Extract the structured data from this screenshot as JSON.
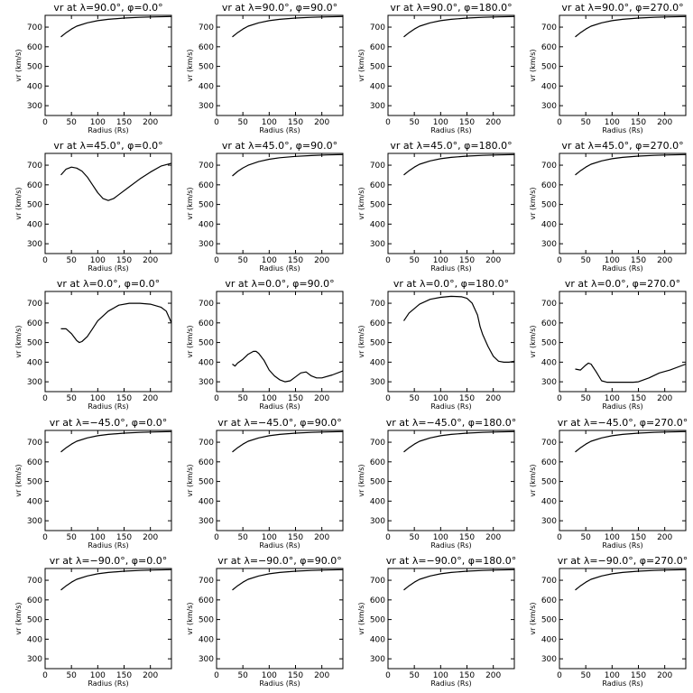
{
  "chart_data": [
    {
      "type": "line",
      "title": "vr at λ=90.0°, φ=0.0°",
      "xlabel": "Radius (Rs)",
      "ylabel": "vr (km/s)",
      "xlim": [
        0,
        240
      ],
      "ylim": [
        250,
        760
      ],
      "xticks": [
        0,
        50,
        100,
        150,
        200
      ],
      "yticks": [
        300,
        400,
        500,
        600,
        700
      ],
      "x": [
        30,
        40,
        50,
        60,
        80,
        100,
        120,
        150,
        180,
        210,
        240
      ],
      "y": [
        650,
        672,
        690,
        705,
        722,
        733,
        740,
        746,
        750,
        752,
        754
      ]
    },
    {
      "type": "line",
      "title": "vr at λ=90.0°, φ=90.0°",
      "xlabel": "Radius (Rs)",
      "ylabel": "vr (km/s)",
      "xlim": [
        0,
        240
      ],
      "ylim": [
        250,
        760
      ],
      "xticks": [
        0,
        50,
        100,
        150,
        200
      ],
      "yticks": [
        300,
        400,
        500,
        600,
        700
      ],
      "x": [
        30,
        40,
        50,
        60,
        80,
        100,
        120,
        150,
        180,
        210,
        240
      ],
      "y": [
        650,
        672,
        690,
        705,
        722,
        733,
        740,
        746,
        750,
        752,
        754
      ]
    },
    {
      "type": "line",
      "title": "vr at λ=90.0°, φ=180.0°",
      "xlabel": "Radius (Rs)",
      "ylabel": "vr (km/s)",
      "xlim": [
        0,
        240
      ],
      "ylim": [
        250,
        760
      ],
      "xticks": [
        0,
        50,
        100,
        150,
        200
      ],
      "yticks": [
        300,
        400,
        500,
        600,
        700
      ],
      "x": [
        30,
        40,
        50,
        60,
        80,
        100,
        120,
        150,
        180,
        210,
        240
      ],
      "y": [
        650,
        672,
        690,
        705,
        722,
        733,
        740,
        746,
        750,
        752,
        754
      ]
    },
    {
      "type": "line",
      "title": "vr at λ=90.0°, φ=270.0°",
      "xlabel": "Radius (Rs)",
      "ylabel": "vr (km/s)",
      "xlim": [
        0,
        240
      ],
      "ylim": [
        250,
        760
      ],
      "xticks": [
        0,
        50,
        100,
        150,
        200
      ],
      "yticks": [
        300,
        400,
        500,
        600,
        700
      ],
      "x": [
        30,
        40,
        50,
        60,
        80,
        100,
        120,
        150,
        180,
        210,
        240
      ],
      "y": [
        650,
        672,
        690,
        705,
        722,
        733,
        740,
        746,
        750,
        752,
        754
      ]
    },
    {
      "type": "line",
      "title": "vr at λ=45.0°, φ=0.0°",
      "xlabel": "Radius (Rs)",
      "ylabel": "vr (km/s)",
      "xlim": [
        0,
        240
      ],
      "ylim": [
        250,
        760
      ],
      "xticks": [
        0,
        50,
        100,
        150,
        200
      ],
      "yticks": [
        300,
        400,
        500,
        600,
        700
      ],
      "x": [
        30,
        40,
        50,
        60,
        70,
        80,
        90,
        100,
        110,
        120,
        130,
        140,
        160,
        180,
        200,
        220,
        240
      ],
      "y": [
        650,
        680,
        690,
        685,
        670,
        640,
        600,
        560,
        530,
        520,
        530,
        550,
        590,
        630,
        665,
        695,
        710
      ]
    },
    {
      "type": "line",
      "title": "vr at λ=45.0°, φ=90.0°",
      "xlabel": "Radius (Rs)",
      "ylabel": "vr (km/s)",
      "xlim": [
        0,
        240
      ],
      "ylim": [
        250,
        760
      ],
      "xticks": [
        0,
        50,
        100,
        150,
        200
      ],
      "yticks": [
        300,
        400,
        500,
        600,
        700
      ],
      "x": [
        30,
        40,
        50,
        60,
        80,
        100,
        120,
        150,
        180,
        210,
        240
      ],
      "y": [
        645,
        668,
        686,
        700,
        718,
        730,
        738,
        745,
        749,
        752,
        754
      ]
    },
    {
      "type": "line",
      "title": "vr at λ=45.0°, φ=180.0°",
      "xlabel": "Radius (Rs)",
      "ylabel": "vr (km/s)",
      "xlim": [
        0,
        240
      ],
      "ylim": [
        250,
        760
      ],
      "xticks": [
        0,
        50,
        100,
        150,
        200
      ],
      "yticks": [
        300,
        400,
        500,
        600,
        700
      ],
      "x": [
        30,
        40,
        50,
        60,
        80,
        100,
        120,
        150,
        180,
        210,
        240
      ],
      "y": [
        650,
        672,
        690,
        705,
        722,
        733,
        740,
        746,
        750,
        752,
        754
      ]
    },
    {
      "type": "line",
      "title": "vr at λ=45.0°, φ=270.0°",
      "xlabel": "Radius (Rs)",
      "ylabel": "vr (km/s)",
      "xlim": [
        0,
        240
      ],
      "ylim": [
        250,
        760
      ],
      "xticks": [
        0,
        50,
        100,
        150,
        200
      ],
      "yticks": [
        300,
        400,
        500,
        600,
        700
      ],
      "x": [
        30,
        40,
        50,
        60,
        80,
        100,
        120,
        150,
        180,
        210,
        240
      ],
      "y": [
        650,
        672,
        690,
        705,
        722,
        733,
        740,
        746,
        750,
        752,
        754
      ]
    },
    {
      "type": "line",
      "title": "vr at λ=0.0°, φ=0.0°",
      "xlabel": "Radius (Rs)",
      "ylabel": "vr (km/s)",
      "xlim": [
        0,
        240
      ],
      "ylim": [
        250,
        760
      ],
      "xticks": [
        0,
        50,
        100,
        150,
        200
      ],
      "yticks": [
        300,
        400,
        500,
        600,
        700
      ],
      "x": [
        30,
        40,
        50,
        60,
        65,
        70,
        80,
        90,
        100,
        120,
        140,
        160,
        180,
        200,
        220,
        230,
        240
      ],
      "y": [
        570,
        570,
        545,
        510,
        500,
        505,
        530,
        570,
        610,
        660,
        690,
        700,
        700,
        695,
        680,
        660,
        600
      ]
    },
    {
      "type": "line",
      "title": "vr at λ=0.0°, φ=90.0°",
      "xlabel": "Radius (Rs)",
      "ylabel": "vr (km/s)",
      "xlim": [
        0,
        240
      ],
      "ylim": [
        250,
        760
      ],
      "xticks": [
        0,
        50,
        100,
        150,
        200
      ],
      "yticks": [
        300,
        400,
        500,
        600,
        700
      ],
      "x": [
        30,
        35,
        40,
        50,
        60,
        70,
        75,
        80,
        90,
        100,
        110,
        120,
        130,
        140,
        150,
        160,
        170,
        180,
        190,
        200,
        220,
        240
      ],
      "y": [
        390,
        380,
        395,
        415,
        440,
        455,
        455,
        445,
        410,
        360,
        330,
        310,
        300,
        305,
        325,
        345,
        350,
        330,
        320,
        320,
        335,
        355
      ]
    },
    {
      "type": "line",
      "title": "vr at λ=0.0°, φ=180.0°",
      "xlabel": "Radius (Rs)",
      "ylabel": "vr (km/s)",
      "xlim": [
        0,
        240
      ],
      "ylim": [
        250,
        760
      ],
      "xticks": [
        0,
        50,
        100,
        150,
        200
      ],
      "yticks": [
        300,
        400,
        500,
        600,
        700
      ],
      "x": [
        30,
        40,
        60,
        80,
        100,
        120,
        140,
        150,
        160,
        170,
        175,
        180,
        190,
        200,
        210,
        220,
        230,
        240
      ],
      "y": [
        610,
        650,
        695,
        720,
        730,
        735,
        733,
        725,
        700,
        640,
        580,
        540,
        480,
        430,
        405,
        400,
        400,
        405
      ]
    },
    {
      "type": "line",
      "title": "vr at λ=0.0°, φ=270.0°",
      "xlabel": "Radius (Rs)",
      "ylabel": "vr (km/s)",
      "xlim": [
        0,
        240
      ],
      "ylim": [
        250,
        760
      ],
      "xticks": [
        0,
        50,
        100,
        150,
        200
      ],
      "yticks": [
        300,
        400,
        500,
        600,
        700
      ],
      "x": [
        30,
        40,
        50,
        55,
        60,
        70,
        80,
        90,
        100,
        120,
        140,
        150,
        170,
        190,
        210,
        240
      ],
      "y": [
        365,
        360,
        385,
        395,
        390,
        350,
        305,
        298,
        298,
        298,
        298,
        300,
        320,
        345,
        360,
        390
      ]
    },
    {
      "type": "line",
      "title": "vr at λ=−45.0°, φ=0.0°",
      "xlabel": "Radius (Rs)",
      "ylabel": "vr (km/s)",
      "xlim": [
        0,
        240
      ],
      "ylim": [
        250,
        760
      ],
      "xticks": [
        0,
        50,
        100,
        150,
        200
      ],
      "yticks": [
        300,
        400,
        500,
        600,
        700
      ],
      "x": [
        30,
        40,
        50,
        60,
        80,
        100,
        120,
        150,
        180,
        210,
        240
      ],
      "y": [
        650,
        672,
        690,
        705,
        722,
        733,
        740,
        746,
        750,
        752,
        754
      ]
    },
    {
      "type": "line",
      "title": "vr at λ=−45.0°, φ=90.0°",
      "xlabel": "Radius (Rs)",
      "ylabel": "vr (km/s)",
      "xlim": [
        0,
        240
      ],
      "ylim": [
        250,
        760
      ],
      "xticks": [
        0,
        50,
        100,
        150,
        200
      ],
      "yticks": [
        300,
        400,
        500,
        600,
        700
      ],
      "x": [
        30,
        40,
        50,
        60,
        80,
        100,
        120,
        150,
        180,
        210,
        240
      ],
      "y": [
        650,
        672,
        690,
        705,
        722,
        733,
        740,
        746,
        750,
        752,
        754
      ]
    },
    {
      "type": "line",
      "title": "vr at λ=−45.0°, φ=180.0°",
      "xlabel": "Radius (Rs)",
      "ylabel": "vr (km/s)",
      "xlim": [
        0,
        240
      ],
      "ylim": [
        250,
        760
      ],
      "xticks": [
        0,
        50,
        100,
        150,
        200
      ],
      "yticks": [
        300,
        400,
        500,
        600,
        700
      ],
      "x": [
        30,
        40,
        50,
        60,
        80,
        100,
        120,
        150,
        180,
        210,
        240
      ],
      "y": [
        650,
        672,
        690,
        705,
        722,
        733,
        740,
        746,
        750,
        752,
        754
      ]
    },
    {
      "type": "line",
      "title": "vr at λ=−45.0°, φ=270.0°",
      "xlabel": "Radius (Rs)",
      "ylabel": "vr (km/s)",
      "xlim": [
        0,
        240
      ],
      "ylim": [
        250,
        760
      ],
      "xticks": [
        0,
        50,
        100,
        150,
        200
      ],
      "yticks": [
        300,
        400,
        500,
        600,
        700
      ],
      "x": [
        30,
        40,
        50,
        60,
        80,
        100,
        120,
        150,
        180,
        210,
        240
      ],
      "y": [
        650,
        672,
        690,
        705,
        722,
        733,
        740,
        746,
        750,
        752,
        754
      ]
    },
    {
      "type": "line",
      "title": "vr at λ=−90.0°, φ=0.0°",
      "xlabel": "Radius (Rs)",
      "ylabel": "vr (km/s)",
      "xlim": [
        0,
        240
      ],
      "ylim": [
        250,
        760
      ],
      "xticks": [
        0,
        50,
        100,
        150,
        200
      ],
      "yticks": [
        300,
        400,
        500,
        600,
        700
      ],
      "x": [
        30,
        40,
        50,
        60,
        80,
        100,
        120,
        150,
        180,
        210,
        240
      ],
      "y": [
        650,
        672,
        690,
        705,
        722,
        733,
        740,
        746,
        750,
        752,
        754
      ]
    },
    {
      "type": "line",
      "title": "vr at λ=−90.0°, φ=90.0°",
      "xlabel": "Radius (Rs)",
      "ylabel": "vr (km/s)",
      "xlim": [
        0,
        240
      ],
      "ylim": [
        250,
        760
      ],
      "xticks": [
        0,
        50,
        100,
        150,
        200
      ],
      "yticks": [
        300,
        400,
        500,
        600,
        700
      ],
      "x": [
        30,
        40,
        50,
        60,
        80,
        100,
        120,
        150,
        180,
        210,
        240
      ],
      "y": [
        650,
        672,
        690,
        705,
        722,
        733,
        740,
        746,
        750,
        752,
        754
      ]
    },
    {
      "type": "line",
      "title": "vr at λ=−90.0°, φ=180.0°",
      "xlabel": "Radius (Rs)",
      "ylabel": "vr (km/s)",
      "xlim": [
        0,
        240
      ],
      "ylim": [
        250,
        760
      ],
      "xticks": [
        0,
        50,
        100,
        150,
        200
      ],
      "yticks": [
        300,
        400,
        500,
        600,
        700
      ],
      "x": [
        30,
        40,
        50,
        60,
        80,
        100,
        120,
        150,
        180,
        210,
        240
      ],
      "y": [
        650,
        672,
        690,
        705,
        722,
        733,
        740,
        746,
        750,
        752,
        754
      ]
    },
    {
      "type": "line",
      "title": "vr at λ=−90.0°, φ=270.0°",
      "xlabel": "Radius (Rs)",
      "ylabel": "vr (km/s)",
      "xlim": [
        0,
        240
      ],
      "ylim": [
        250,
        760
      ],
      "xticks": [
        0,
        50,
        100,
        150,
        200
      ],
      "yticks": [
        300,
        400,
        500,
        600,
        700
      ],
      "x": [
        30,
        40,
        50,
        60,
        80,
        100,
        120,
        150,
        180,
        210,
        240
      ],
      "y": [
        650,
        672,
        690,
        705,
        722,
        733,
        740,
        746,
        750,
        752,
        754
      ]
    }
  ]
}
